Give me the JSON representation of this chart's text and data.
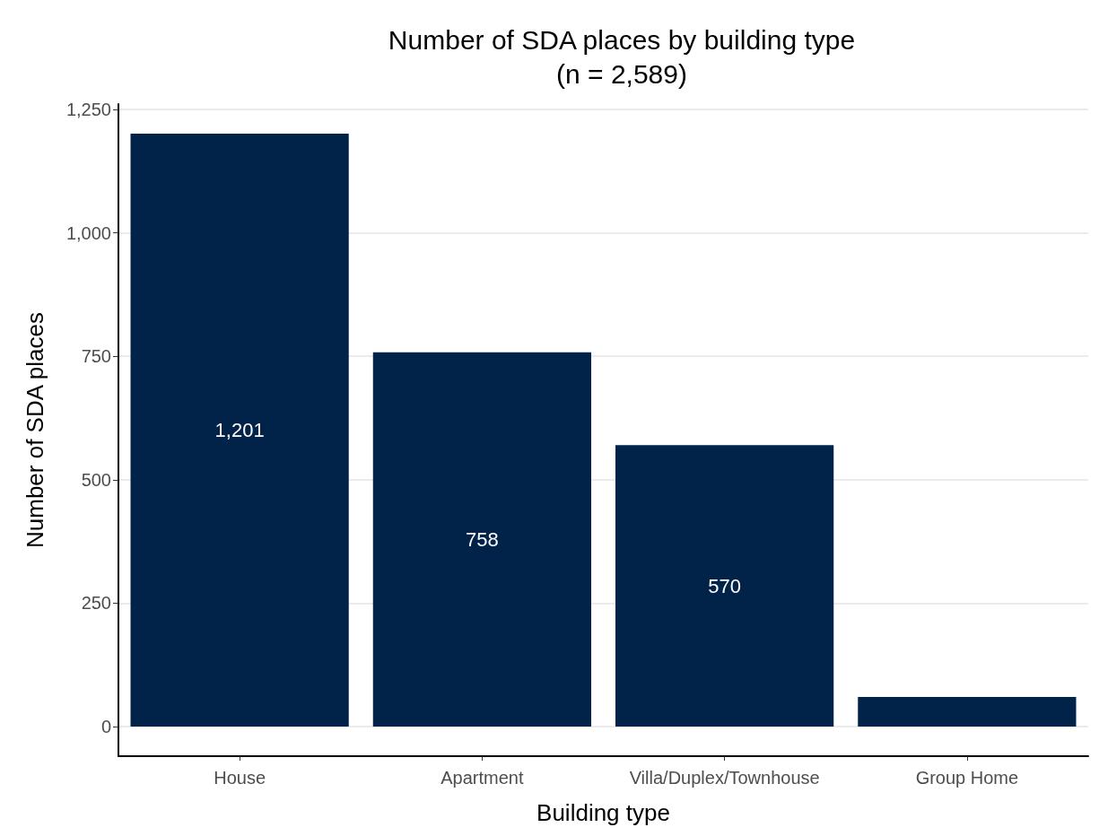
{
  "chart_data": {
    "type": "bar",
    "title": "Number of SDA places by building type\n(n = 2,589)",
    "xlabel": "Building type",
    "ylabel": "Number of SDA places",
    "categories": [
      "House",
      "Apartment",
      "Villa/Duplex/Townhouse",
      "Group Home"
    ],
    "values": [
      1201,
      758,
      570,
      60
    ],
    "value_labels": [
      "1,201",
      "758",
      "570",
      null
    ],
    "color": "#012249",
    "ylim": [
      -60,
      1261
    ],
    "yticks": [
      0,
      {
        "value": 250,
        "label": "250"
      },
      {
        "value": 500,
        "label": "500"
      },
      {
        "value": 750,
        "label": "750"
      },
      {
        "value": 1000,
        "label": "1,000"
      },
      {
        "value": 1250,
        "label": "1,250"
      }
    ],
    "grid": "y"
  }
}
